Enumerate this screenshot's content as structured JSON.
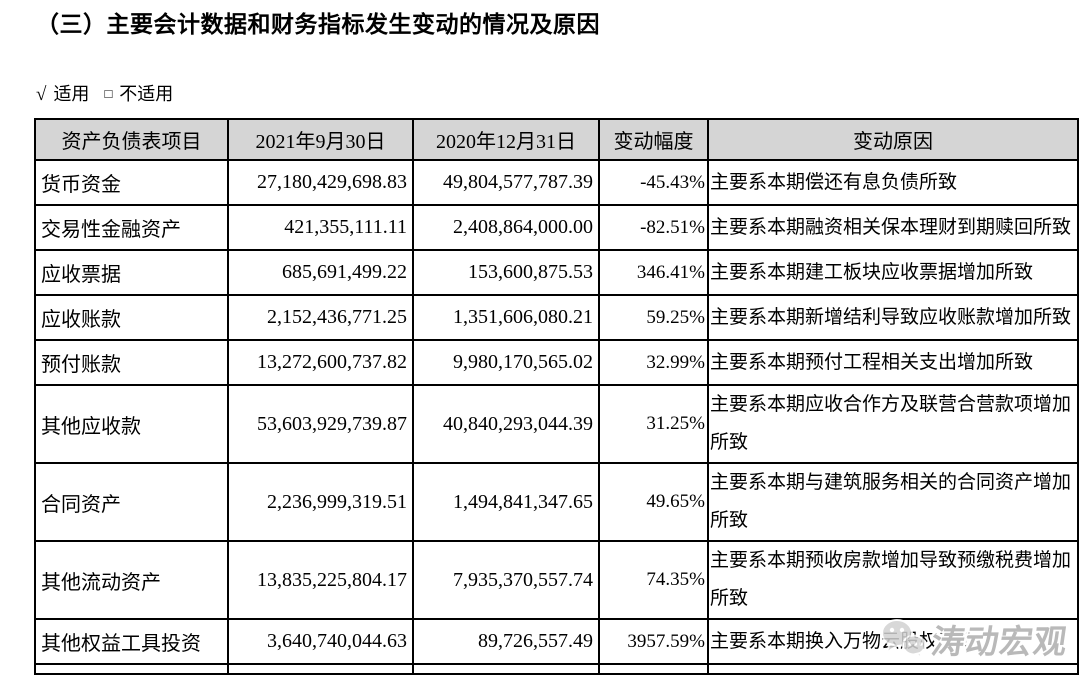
{
  "page": {
    "title": "（三）主要会计数据和财务指标发生变动的情况及原因",
    "applicability": {
      "check_symbol": "√",
      "applicable": "适用",
      "box_symbol": "□",
      "not_applicable": "不适用"
    }
  },
  "table": {
    "headers": [
      "资产负债表项目",
      "2021年9月30日",
      "2020年12月31日",
      "变动幅度",
      "变动原因"
    ],
    "rows": [
      {
        "item": "货币资金",
        "v2021": "27,180,429,698.83",
        "v2020": "49,804,577,787.39",
        "change": "-45.43%",
        "reason": "主要系本期偿还有息负债所致"
      },
      {
        "item": "交易性金融资产",
        "v2021": "421,355,111.11",
        "v2020": "2,408,864,000.00",
        "change": "-82.51%",
        "reason": "主要系本期融资相关保本理财到期赎回所致"
      },
      {
        "item": "应收票据",
        "v2021": "685,691,499.22",
        "v2020": "153,600,875.53",
        "change": "346.41%",
        "reason": "主要系本期建工板块应收票据增加所致"
      },
      {
        "item": "应收账款",
        "v2021": "2,152,436,771.25",
        "v2020": "1,351,606,080.21",
        "change": "59.25%",
        "reason": "主要系本期新增结利导致应收账款增加所致"
      },
      {
        "item": "预付账款",
        "v2021": "13,272,600,737.82",
        "v2020": "9,980,170,565.02",
        "change": "32.99%",
        "reason": "主要系本期预付工程相关支出增加所致"
      },
      {
        "item": "其他应收款",
        "v2021": "53,603,929,739.87",
        "v2020": "40,840,293,044.39",
        "change": "31.25%",
        "reason": "主要系本期应收合作方及联营合营款项增加所致"
      },
      {
        "item": "合同资产",
        "v2021": "2,236,999,319.51",
        "v2020": "1,494,841,347.65",
        "change": "49.65%",
        "reason": "主要系本期与建筑服务相关的合同资产增加所致"
      },
      {
        "item": "其他流动资产",
        "v2021": "13,835,225,804.17",
        "v2020": "7,935,370,557.74",
        "change": "74.35%",
        "reason": "主要系本期预收房款增加导致预缴税费增加所致"
      },
      {
        "item": "其他权益工具投资",
        "v2021": "3,640,740,044.63",
        "v2020": "89,726,557.49",
        "change": "3957.59%",
        "reason": "主要系本期换入万物云股权所致"
      }
    ]
  },
  "watermark": {
    "text": "涛动宏观",
    "icon": "wechat-icon",
    "color": "#b9b9b9"
  },
  "colors": {
    "header_bg": "#d5d5d5",
    "border": "#000000",
    "text": "#000000"
  }
}
